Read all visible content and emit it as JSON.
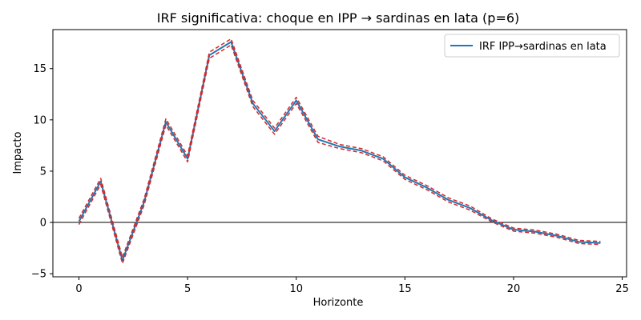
{
  "chart_data": {
    "type": "line",
    "title": "IRF significativa: choque en IPP → sardinas en lata (p=6)",
    "xlabel": "Horizonte",
    "ylabel": "Impacto",
    "xlim": [
      -1.2,
      25.2
    ],
    "ylim": [
      -5.3,
      18.8
    ],
    "xticks": [
      0,
      5,
      10,
      15,
      20,
      25
    ],
    "yticks": [
      -5,
      0,
      5,
      10,
      15
    ],
    "grid": false,
    "legend_position": "top-right",
    "zero_line": 0,
    "x": [
      0,
      1,
      2,
      3,
      4,
      5,
      6,
      7,
      8,
      9,
      10,
      11,
      12,
      13,
      14,
      15,
      16,
      17,
      18,
      19,
      20,
      21,
      22,
      23,
      24
    ],
    "series": [
      {
        "name": "IRF IPP→sardinas en lata",
        "color": "#1f77b4",
        "style": "solid",
        "values": [
          0.1,
          4.0,
          -3.7,
          2.0,
          9.8,
          6.2,
          16.3,
          17.6,
          11.6,
          8.9,
          11.9,
          8.1,
          7.4,
          7.0,
          6.2,
          4.4,
          3.4,
          2.2,
          1.4,
          0.2,
          -0.7,
          -0.9,
          -1.3,
          -1.9,
          -2.0
        ]
      },
      {
        "color": "#d62728",
        "style": "dashed",
        "values": [
          0.4,
          4.3,
          -3.4,
          2.3,
          10.1,
          6.5,
          16.6,
          17.9,
          11.9,
          9.2,
          12.2,
          8.4,
          7.6,
          7.2,
          6.4,
          4.6,
          3.6,
          2.4,
          1.6,
          0.35,
          -0.55,
          -0.75,
          -1.15,
          -1.75,
          -1.85
        ]
      },
      {
        "color": "#d62728",
        "style": "dashed",
        "values": [
          -0.2,
          3.7,
          -4.0,
          1.7,
          9.5,
          5.9,
          16.0,
          17.3,
          11.3,
          8.6,
          11.6,
          7.8,
          7.2,
          6.8,
          6.0,
          4.2,
          3.2,
          2.0,
          1.2,
          0.05,
          -0.85,
          -1.05,
          -1.45,
          -2.05,
          -2.15
        ]
      }
    ]
  }
}
